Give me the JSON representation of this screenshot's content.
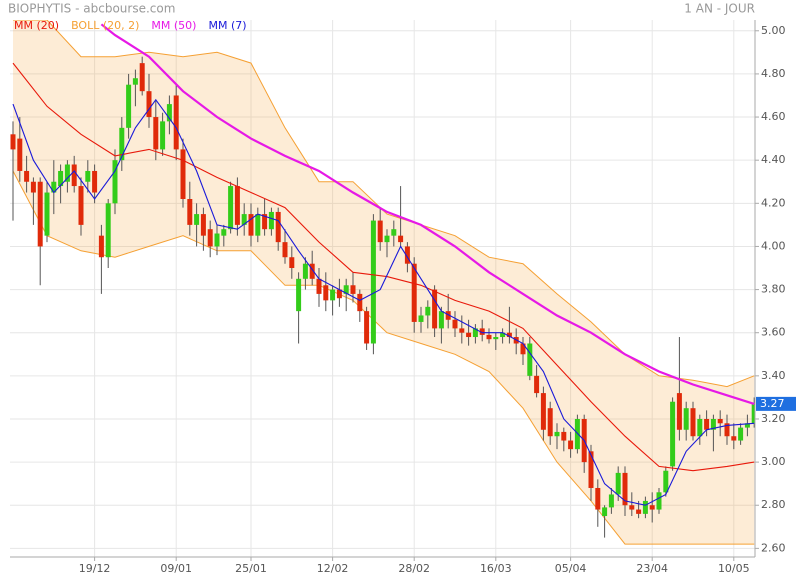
{
  "chart_data": {
    "type": "candlestick",
    "title": "BIOPHYTIS - abcbourse.com",
    "period": "1 AN - JOUR",
    "up_color": "#33cc1a",
    "down_color": "#e02a0a",
    "grid": true,
    "ylim": [
      2.56,
      5.05
    ],
    "yticks": [
      {
        "value": 2.6,
        "label": "2.60"
      },
      {
        "value": 2.8,
        "label": "2.80"
      },
      {
        "value": 3.0,
        "label": "3.00"
      },
      {
        "value": 3.2,
        "label": "3.20"
      },
      {
        "value": 3.4,
        "label": "3.40"
      },
      {
        "value": 3.6,
        "label": "3.60"
      },
      {
        "value": 3.8,
        "label": "3.80"
      },
      {
        "value": 4.0,
        "label": "4.00"
      },
      {
        "value": 4.2,
        "label": "4.20"
      },
      {
        "value": 4.4,
        "label": "4.40"
      },
      {
        "value": 4.6,
        "label": "4.60"
      },
      {
        "value": 4.8,
        "label": "4.80"
      },
      {
        "value": 5.0,
        "label": "5.00"
      }
    ],
    "last_price": 3.27,
    "last_price_color": "#1f6fe0",
    "categories": [
      null,
      null,
      null,
      null,
      null,
      null,
      null,
      null,
      null,
      null,
      null,
      null,
      "19/12",
      null,
      null,
      null,
      null,
      null,
      null,
      null,
      null,
      null,
      null,
      null,
      "09/01",
      null,
      null,
      null,
      null,
      null,
      null,
      null,
      null,
      null,
      null,
      "25/01",
      null,
      null,
      null,
      null,
      null,
      null,
      null,
      null,
      null,
      null,
      null,
      "12/02",
      null,
      null,
      null,
      null,
      null,
      null,
      null,
      null,
      null,
      null,
      null,
      "28/02",
      null,
      null,
      null,
      null,
      null,
      null,
      null,
      null,
      null,
      null,
      null,
      "16/03",
      null,
      null,
      null,
      null,
      null,
      null,
      null,
      null,
      null,
      null,
      "05/04",
      null,
      null,
      null,
      null,
      null,
      null,
      null,
      null,
      null,
      null,
      null,
      "23/04",
      null,
      null,
      null,
      null,
      null,
      null,
      null,
      null,
      null,
      null,
      null,
      "10/05",
      null,
      null,
      null
    ],
    "ohlc": [
      [
        4.52,
        4.58,
        4.12,
        4.45
      ],
      [
        4.5,
        4.6,
        4.3,
        4.35
      ],
      [
        4.35,
        4.42,
        4.25,
        4.3
      ],
      [
        4.3,
        4.32,
        4.1,
        4.25
      ],
      [
        4.3,
        4.32,
        3.82,
        4.0
      ],
      [
        4.05,
        4.3,
        4.02,
        4.25
      ],
      [
        4.25,
        4.4,
        4.15,
        4.3
      ],
      [
        4.28,
        4.38,
        4.2,
        4.35
      ],
      [
        4.3,
        4.4,
        4.25,
        4.38
      ],
      [
        4.38,
        4.42,
        4.25,
        4.28
      ],
      [
        4.28,
        4.32,
        4.05,
        4.1
      ],
      [
        4.3,
        4.4,
        4.25,
        4.35
      ],
      [
        4.35,
        4.38,
        4.2,
        4.25
      ],
      [
        4.05,
        4.1,
        3.78,
        3.95
      ],
      [
        3.95,
        4.22,
        3.9,
        4.2
      ],
      [
        4.2,
        4.45,
        4.15,
        4.4
      ],
      [
        4.4,
        4.6,
        4.35,
        4.55
      ],
      [
        4.55,
        4.8,
        4.5,
        4.75
      ],
      [
        4.75,
        4.82,
        4.65,
        4.78
      ],
      [
        4.85,
        4.88,
        4.7,
        4.72
      ],
      [
        4.72,
        4.8,
        4.55,
        4.6
      ],
      [
        4.6,
        4.68,
        4.4,
        4.45
      ],
      [
        4.45,
        4.62,
        4.42,
        4.58
      ],
      [
        4.58,
        4.7,
        4.52,
        4.66
      ],
      [
        4.7,
        4.75,
        4.4,
        4.45
      ],
      [
        4.45,
        4.5,
        4.18,
        4.22
      ],
      [
        4.22,
        4.3,
        4.05,
        4.1
      ],
      [
        4.1,
        4.2,
        4.0,
        4.15
      ],
      [
        4.15,
        4.18,
        3.98,
        4.05
      ],
      [
        4.08,
        4.12,
        3.95,
        4.0
      ],
      [
        4.0,
        4.1,
        3.96,
        4.06
      ],
      [
        4.05,
        4.1,
        4.0,
        4.08
      ],
      [
        4.08,
        4.3,
        4.06,
        4.28
      ],
      [
        4.28,
        4.32,
        4.05,
        4.1
      ],
      [
        4.1,
        4.2,
        4.05,
        4.15
      ],
      [
        4.15,
        4.2,
        4.0,
        4.05
      ],
      [
        4.05,
        4.18,
        4.02,
        4.15
      ],
      [
        4.15,
        4.22,
        4.05,
        4.08
      ],
      [
        4.08,
        4.18,
        4.05,
        4.16
      ],
      [
        4.16,
        4.18,
        3.98,
        4.02
      ],
      [
        4.02,
        4.08,
        3.92,
        3.95
      ],
      [
        3.95,
        4.0,
        3.85,
        3.9
      ],
      [
        3.7,
        3.88,
        3.55,
        3.85
      ],
      [
        3.85,
        3.95,
        3.8,
        3.92
      ],
      [
        3.92,
        3.98,
        3.82,
        3.85
      ],
      [
        3.85,
        3.9,
        3.72,
        3.78
      ],
      [
        3.82,
        3.88,
        3.7,
        3.75
      ],
      [
        3.75,
        3.82,
        3.68,
        3.8
      ],
      [
        3.8,
        3.85,
        3.72,
        3.76
      ],
      [
        3.78,
        3.85,
        3.7,
        3.82
      ],
      [
        3.82,
        3.88,
        3.74,
        3.78
      ],
      [
        3.78,
        3.8,
        3.65,
        3.7
      ],
      [
        3.7,
        3.72,
        3.52,
        3.55
      ],
      [
        3.55,
        4.15,
        3.5,
        4.12
      ],
      [
        4.12,
        4.18,
        3.98,
        4.02
      ],
      [
        4.02,
        4.08,
        3.95,
        4.05
      ],
      [
        4.05,
        4.12,
        4.0,
        4.08
      ],
      [
        4.05,
        4.28,
        4.0,
        4.02
      ],
      [
        4.0,
        4.02,
        3.88,
        3.92
      ],
      [
        3.92,
        3.95,
        3.6,
        3.65
      ],
      [
        3.65,
        3.72,
        3.6,
        3.68
      ],
      [
        3.68,
        3.75,
        3.62,
        3.72
      ],
      [
        3.8,
        3.82,
        3.58,
        3.62
      ],
      [
        3.62,
        3.72,
        3.55,
        3.7
      ],
      [
        3.7,
        3.78,
        3.62,
        3.66
      ],
      [
        3.66,
        3.7,
        3.58,
        3.62
      ],
      [
        3.62,
        3.68,
        3.55,
        3.6
      ],
      [
        3.6,
        3.66,
        3.54,
        3.58
      ],
      [
        3.58,
        3.64,
        3.55,
        3.62
      ],
      [
        3.62,
        3.66,
        3.56,
        3.59
      ],
      [
        3.59,
        3.62,
        3.55,
        3.57
      ],
      [
        3.57,
        3.6,
        3.52,
        3.58
      ],
      [
        3.58,
        3.62,
        3.55,
        3.6
      ],
      [
        3.6,
        3.72,
        3.55,
        3.58
      ],
      [
        3.58,
        3.62,
        3.5,
        3.55
      ],
      [
        3.55,
        3.58,
        3.45,
        3.5
      ],
      [
        3.4,
        3.58,
        3.38,
        3.55
      ],
      [
        3.4,
        3.45,
        3.3,
        3.32
      ],
      [
        3.32,
        3.35,
        3.1,
        3.15
      ],
      [
        3.25,
        3.28,
        3.08,
        3.12
      ],
      [
        3.12,
        3.18,
        3.06,
        3.14
      ],
      [
        3.14,
        3.16,
        3.05,
        3.1
      ],
      [
        3.1,
        3.14,
        3.02,
        3.06
      ],
      [
        3.06,
        3.22,
        3.04,
        3.2
      ],
      [
        3.2,
        3.22,
        2.95,
        3.0
      ],
      [
        3.05,
        3.08,
        2.82,
        2.88
      ],
      [
        2.88,
        2.92,
        2.7,
        2.78
      ],
      [
        2.75,
        2.8,
        2.65,
        2.79
      ],
      [
        2.79,
        2.88,
        2.76,
        2.85
      ],
      [
        2.85,
        2.98,
        2.82,
        2.95
      ],
      [
        2.95,
        2.98,
        2.75,
        2.8
      ],
      [
        2.8,
        2.86,
        2.75,
        2.78
      ],
      [
        2.78,
        2.82,
        2.74,
        2.76
      ],
      [
        2.76,
        2.84,
        2.74,
        2.82
      ],
      [
        2.8,
        2.86,
        2.72,
        2.78
      ],
      [
        2.78,
        2.88,
        2.76,
        2.86
      ],
      [
        2.86,
        2.98,
        2.84,
        2.96
      ],
      [
        2.98,
        3.3,
        2.96,
        3.28
      ],
      [
        3.32,
        3.58,
        3.1,
        3.15
      ],
      [
        3.15,
        3.28,
        3.1,
        3.25
      ],
      [
        3.25,
        3.28,
        3.1,
        3.12
      ],
      [
        3.12,
        3.22,
        3.08,
        3.2
      ],
      [
        3.2,
        3.24,
        3.12,
        3.15
      ],
      [
        3.15,
        3.22,
        3.05,
        3.2
      ],
      [
        3.2,
        3.24,
        3.12,
        3.18
      ],
      [
        3.18,
        3.22,
        3.08,
        3.12
      ],
      [
        3.12,
        3.18,
        3.06,
        3.1
      ],
      [
        3.1,
        3.18,
        3.08,
        3.16
      ],
      [
        3.16,
        3.22,
        3.12,
        3.18
      ],
      [
        3.18,
        3.3,
        3.16,
        3.27
      ]
    ],
    "series": [
      {
        "name": "MM (20)",
        "color": "#e8190b",
        "x": [
          0,
          5,
          10,
          15,
          20,
          25,
          30,
          35,
          40,
          45,
          50,
          55,
          60,
          65,
          70,
          75,
          80,
          85,
          90,
          95,
          100,
          105,
          109
        ],
        "values": [
          4.85,
          4.65,
          4.52,
          4.42,
          4.45,
          4.4,
          4.32,
          4.25,
          4.18,
          4.02,
          3.88,
          3.86,
          3.82,
          3.75,
          3.7,
          3.62,
          3.45,
          3.28,
          3.12,
          2.98,
          2.96,
          2.98,
          3.0
        ]
      },
      {
        "name": "BOLL (20, 2)",
        "color": "#f5a033",
        "band": true,
        "x": [
          0,
          5,
          10,
          15,
          20,
          25,
          30,
          35,
          40,
          45,
          50,
          55,
          60,
          65,
          70,
          75,
          80,
          85,
          90,
          95,
          100,
          105,
          109
        ],
        "upper": [
          5.05,
          5.05,
          4.88,
          4.88,
          4.9,
          4.88,
          4.9,
          4.85,
          4.55,
          4.3,
          4.3,
          4.15,
          4.1,
          4.05,
          3.95,
          3.92,
          3.78,
          3.65,
          3.5,
          3.4,
          3.38,
          3.35,
          3.4
        ],
        "lower": [
          4.35,
          4.05,
          3.98,
          3.95,
          4.0,
          4.05,
          3.98,
          3.98,
          3.82,
          3.82,
          3.75,
          3.6,
          3.55,
          3.5,
          3.42,
          3.25,
          3.0,
          2.82,
          2.62,
          2.62,
          2.62,
          2.62,
          2.62
        ]
      },
      {
        "name": "MM (50)",
        "color": "#e619e6",
        "x": [
          13,
          15,
          20,
          25,
          30,
          35,
          40,
          45,
          50,
          55,
          60,
          65,
          70,
          75,
          80,
          85,
          90,
          95,
          100,
          105,
          109
        ],
        "values": [
          5.03,
          4.98,
          4.88,
          4.72,
          4.6,
          4.5,
          4.42,
          4.35,
          4.25,
          4.16,
          4.1,
          4.0,
          3.88,
          3.78,
          3.68,
          3.6,
          3.5,
          3.42,
          3.36,
          3.31,
          3.27
        ]
      },
      {
        "name": "MM (7)",
        "color": "#1a1ad9",
        "x": [
          0,
          3,
          6,
          9,
          12,
          15,
          18,
          21,
          24,
          27,
          30,
          33,
          36,
          39,
          42,
          45,
          48,
          51,
          54,
          57,
          60,
          63,
          66,
          69,
          72,
          75,
          78,
          81,
          84,
          87,
          90,
          93,
          96,
          99,
          102,
          105,
          109
        ],
        "values": [
          4.66,
          4.4,
          4.25,
          4.35,
          4.22,
          4.35,
          4.55,
          4.68,
          4.55,
          4.35,
          4.1,
          4.08,
          4.15,
          4.12,
          3.98,
          3.85,
          3.8,
          3.75,
          3.8,
          4.0,
          3.85,
          3.7,
          3.65,
          3.6,
          3.6,
          3.55,
          3.42,
          3.2,
          3.1,
          2.9,
          2.82,
          2.8,
          2.85,
          3.05,
          3.15,
          3.17,
          3.18
        ]
      }
    ]
  }
}
